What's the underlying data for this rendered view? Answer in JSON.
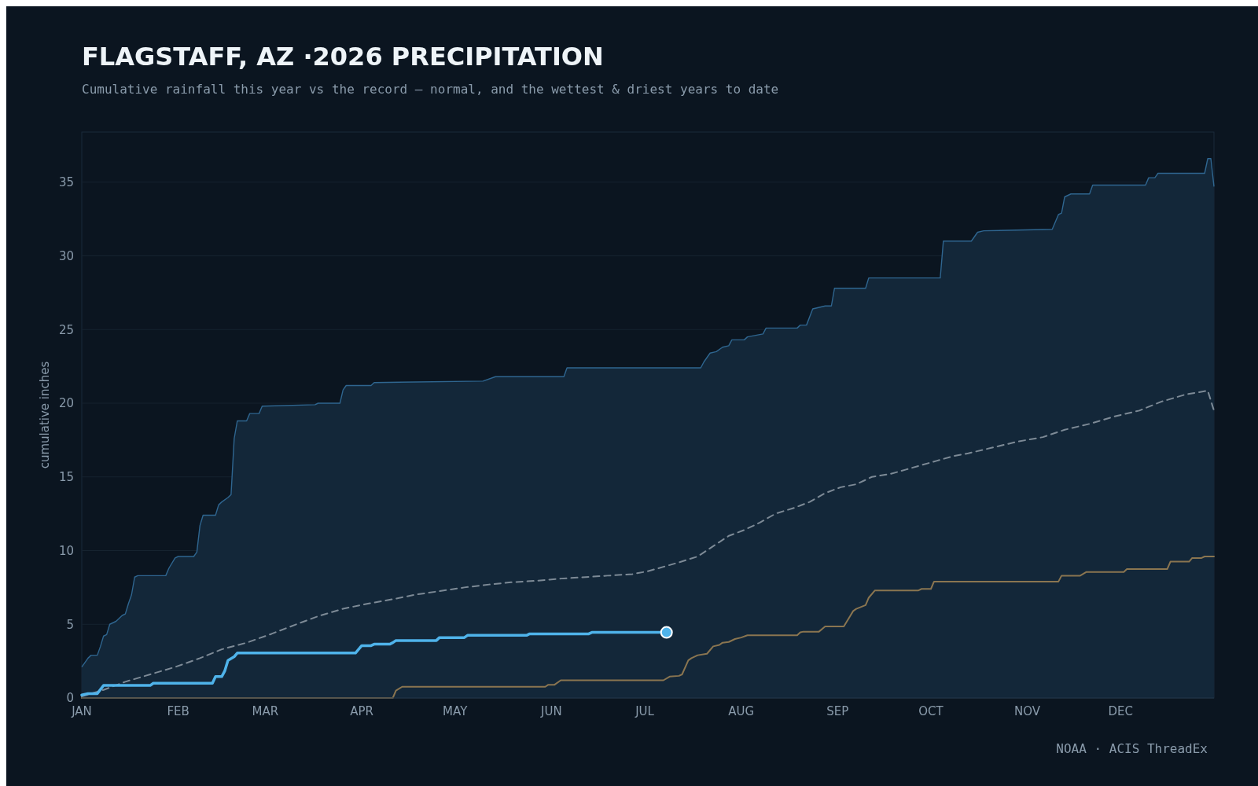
{
  "chart_data": {
    "type": "line",
    "title": "FLAGSTAFF, AZ ·2026 PRECIPITATION",
    "subtitle": "Cumulative rainfall this year vs the record — normal, and the wettest & driest years to date",
    "ylabel": "cumulative inches",
    "annotations": [
      "NOAA · ACIS ThreadEx"
    ],
    "xlim": [
      "2026-01-01",
      "2026-12-31"
    ],
    "ylim": [
      0,
      38.4
    ],
    "xticks": [
      {
        "value": "2026-01-01",
        "label": "JAN"
      },
      {
        "value": "2026-02-01",
        "label": "FEB"
      },
      {
        "value": "2026-03-01",
        "label": "MAR"
      },
      {
        "value": "2026-04-01",
        "label": "APR"
      },
      {
        "value": "2026-05-01",
        "label": "MAY"
      },
      {
        "value": "2026-06-01",
        "label": "JUN"
      },
      {
        "value": "2026-07-01",
        "label": "JUL"
      },
      {
        "value": "2026-08-01",
        "label": "AUG"
      },
      {
        "value": "2026-09-01",
        "label": "SEP"
      },
      {
        "value": "2026-10-01",
        "label": "OCT"
      },
      {
        "value": "2026-11-01",
        "label": "NOV"
      },
      {
        "value": "2026-12-01",
        "label": "DEC"
      }
    ],
    "yticks": [
      0,
      5,
      10,
      15,
      20,
      25,
      30,
      35
    ],
    "grid": "y",
    "series": [
      {
        "type": "area",
        "color": "#2f6690",
        "x": [
          "2026-01-01",
          "2026-01-03",
          "2026-01-04",
          "2026-01-06",
          "2026-01-07",
          "2026-01-08",
          "2026-01-09",
          "2026-01-10",
          "2026-01-12",
          "2026-01-14",
          "2026-01-15",
          "2026-01-16",
          "2026-01-17",
          "2026-01-18",
          "2026-01-19",
          "2026-01-28",
          "2026-01-29",
          "2026-01-31",
          "2026-02-01",
          "2026-02-06",
          "2026-02-07",
          "2026-02-08",
          "2026-02-09",
          "2026-02-13",
          "2026-02-14",
          "2026-02-15",
          "2026-02-17",
          "2026-02-18",
          "2026-02-19",
          "2026-02-20",
          "2026-02-23",
          "2026-02-24",
          "2026-02-27",
          "2026-02-28",
          "2026-03-17",
          "2026-03-18",
          "2026-03-25",
          "2026-03-26",
          "2026-03-27",
          "2026-04-04",
          "2026-04-05",
          "2026-05-10",
          "2026-05-14",
          "2026-06-05",
          "2026-06-06",
          "2026-07-19",
          "2026-07-20",
          "2026-07-22",
          "2026-07-24",
          "2026-07-26",
          "2026-07-28",
          "2026-07-29",
          "2026-08-02",
          "2026-08-03",
          "2026-08-08",
          "2026-08-09",
          "2026-08-19",
          "2026-08-20",
          "2026-08-22",
          "2026-08-24",
          "2026-08-28",
          "2026-08-30",
          "2026-08-31",
          "2026-09-10",
          "2026-09-11",
          "2026-10-04",
          "2026-10-05",
          "2026-10-14",
          "2026-10-16",
          "2026-10-18",
          "2026-11-09",
          "2026-11-11",
          "2026-11-12",
          "2026-11-13",
          "2026-11-15",
          "2026-11-21",
          "2026-11-22",
          "2026-12-09",
          "2026-12-10",
          "2026-12-12",
          "2026-12-13",
          "2026-12-28",
          "2026-12-29",
          "2026-12-30",
          "2026-12-31"
        ],
        "values": [
          2.1,
          2.7,
          2.9,
          2.9,
          3.5,
          4.2,
          4.3,
          5.0,
          5.2,
          5.6,
          5.7,
          6.4,
          7.0,
          8.2,
          8.3,
          8.3,
          8.8,
          9.5,
          9.6,
          9.6,
          9.9,
          11.7,
          12.4,
          12.4,
          13.1,
          13.3,
          13.6,
          13.8,
          17.6,
          18.8,
          18.8,
          19.3,
          19.3,
          19.8,
          19.9,
          20.0,
          20.0,
          20.9,
          21.2,
          21.2,
          21.4,
          21.5,
          21.8,
          21.8,
          22.4,
          22.4,
          22.8,
          23.4,
          23.5,
          23.8,
          23.9,
          24.3,
          24.3,
          24.5,
          24.7,
          25.1,
          25.1,
          25.3,
          25.3,
          26.4,
          26.6,
          26.6,
          27.8,
          27.8,
          28.5,
          28.5,
          31.0,
          31.0,
          31.6,
          31.7,
          31.8,
          32.8,
          32.9,
          34.0,
          34.2,
          34.2,
          34.8,
          34.8,
          35.3,
          35.3,
          35.6,
          35.6,
          36.6,
          36.6,
          34.7
        ]
      },
      {
        "color": "#8a7550",
        "x": [
          "2026-01-01",
          "2026-04-11",
          "2026-04-12",
          "2026-04-14",
          "2026-05-30",
          "2026-05-31",
          "2026-06-02",
          "2026-06-04",
          "2026-07-07",
          "2026-07-09",
          "2026-07-12",
          "2026-07-13",
          "2026-07-15",
          "2026-07-16",
          "2026-07-18",
          "2026-07-21",
          "2026-07-23",
          "2026-07-25",
          "2026-07-26",
          "2026-07-28",
          "2026-07-30",
          "2026-08-01",
          "2026-08-03",
          "2026-08-19",
          "2026-08-20",
          "2026-08-21",
          "2026-08-26",
          "2026-08-28",
          "2026-09-03",
          "2026-09-05",
          "2026-09-06",
          "2026-09-07",
          "2026-09-10",
          "2026-09-11",
          "2026-09-13",
          "2026-09-27",
          "2026-09-28",
          "2026-10-01",
          "2026-10-02",
          "2026-11-11",
          "2026-11-12",
          "2026-11-18",
          "2026-11-20",
          "2026-12-02",
          "2026-12-03",
          "2026-12-16",
          "2026-12-17",
          "2026-12-23",
          "2026-12-24",
          "2026-12-27",
          "2026-12-28",
          "2026-12-31"
        ],
        "values": [
          0,
          0,
          0.5,
          0.76,
          0.76,
          0.9,
          0.9,
          1.2,
          1.2,
          1.45,
          1.5,
          1.6,
          2.55,
          2.7,
          2.9,
          3.0,
          3.5,
          3.6,
          3.75,
          3.8,
          4.0,
          4.1,
          4.25,
          4.25,
          4.45,
          4.5,
          4.5,
          4.85,
          4.85,
          5.55,
          5.9,
          6.05,
          6.3,
          6.8,
          7.3,
          7.3,
          7.4,
          7.4,
          7.9,
          7.9,
          8.3,
          8.3,
          8.55,
          8.55,
          8.75,
          8.75,
          9.25,
          9.25,
          9.5,
          9.5,
          9.6,
          9.6
        ]
      },
      {
        "color": "#7d8a96",
        "line_style": "dashed",
        "x": [
          "2026-01-01",
          "2026-01-08",
          "2026-01-15",
          "2026-01-23",
          "2026-01-31",
          "2026-02-08",
          "2026-02-15",
          "2026-02-23",
          "2026-03-03",
          "2026-03-11",
          "2026-03-18",
          "2026-03-26",
          "2026-04-03",
          "2026-04-11",
          "2026-04-18",
          "2026-04-26",
          "2026-05-04",
          "2026-05-12",
          "2026-05-19",
          "2026-05-27",
          "2026-06-04",
          "2026-06-12",
          "2026-06-19",
          "2026-06-27",
          "2026-07-02",
          "2026-07-07",
          "2026-07-12",
          "2026-07-18",
          "2026-07-23",
          "2026-07-28",
          "2026-08-02",
          "2026-08-07",
          "2026-08-12",
          "2026-08-18",
          "2026-08-23",
          "2026-08-28",
          "2026-09-02",
          "2026-09-07",
          "2026-09-12",
          "2026-09-18",
          "2026-09-23",
          "2026-09-28",
          "2026-10-03",
          "2026-10-08",
          "2026-10-13",
          "2026-10-21",
          "2026-10-29",
          "2026-11-06",
          "2026-11-13",
          "2026-11-21",
          "2026-11-29",
          "2026-12-07",
          "2026-12-14",
          "2026-12-22",
          "2026-12-29",
          "2026-12-31"
        ],
        "values": [
          0.1,
          0.55,
          1.1,
          1.6,
          2.1,
          2.7,
          3.3,
          3.75,
          4.35,
          5.0,
          5.55,
          6.05,
          6.4,
          6.7,
          7.0,
          7.25,
          7.5,
          7.7,
          7.85,
          7.95,
          8.1,
          8.2,
          8.3,
          8.4,
          8.6,
          8.9,
          9.2,
          9.6,
          10.3,
          11.0,
          11.4,
          11.9,
          12.5,
          12.9,
          13.3,
          13.9,
          14.3,
          14.5,
          15.0,
          15.2,
          15.5,
          15.8,
          16.1,
          16.4,
          16.6,
          17.0,
          17.4,
          17.7,
          18.2,
          18.6,
          19.1,
          19.5,
          20.1,
          20.6,
          20.85,
          19.5
        ]
      },
      {
        "color": "#4fb3ea",
        "x": [
          "2026-01-01",
          "2026-01-03",
          "2026-01-06",
          "2026-01-08",
          "2026-01-23",
          "2026-01-24",
          "2026-02-12",
          "2026-02-13",
          "2026-02-15",
          "2026-02-16",
          "2026-02-17",
          "2026-02-19",
          "2026-02-20",
          "2026-03-30",
          "2026-04-01",
          "2026-04-04",
          "2026-04-05",
          "2026-04-10",
          "2026-04-11",
          "2026-04-12",
          "2026-04-25",
          "2026-04-26",
          "2026-05-04",
          "2026-05-05",
          "2026-05-24",
          "2026-05-25",
          "2026-06-13",
          "2026-06-14",
          "2026-07-08"
        ],
        "values": [
          0.2,
          0.3,
          0.3,
          0.85,
          0.85,
          1.0,
          1.0,
          1.45,
          1.45,
          1.85,
          2.55,
          2.8,
          3.05,
          3.05,
          3.55,
          3.55,
          3.65,
          3.65,
          3.75,
          3.9,
          3.9,
          4.1,
          4.1,
          4.25,
          4.25,
          4.35,
          4.35,
          4.45,
          4.45
        ]
      },
      {
        "type": "scatter",
        "color": "#4fb3ea",
        "marker": "circle",
        "x": [
          "2026-07-08"
        ],
        "values": [
          4.45
        ]
      }
    ]
  }
}
